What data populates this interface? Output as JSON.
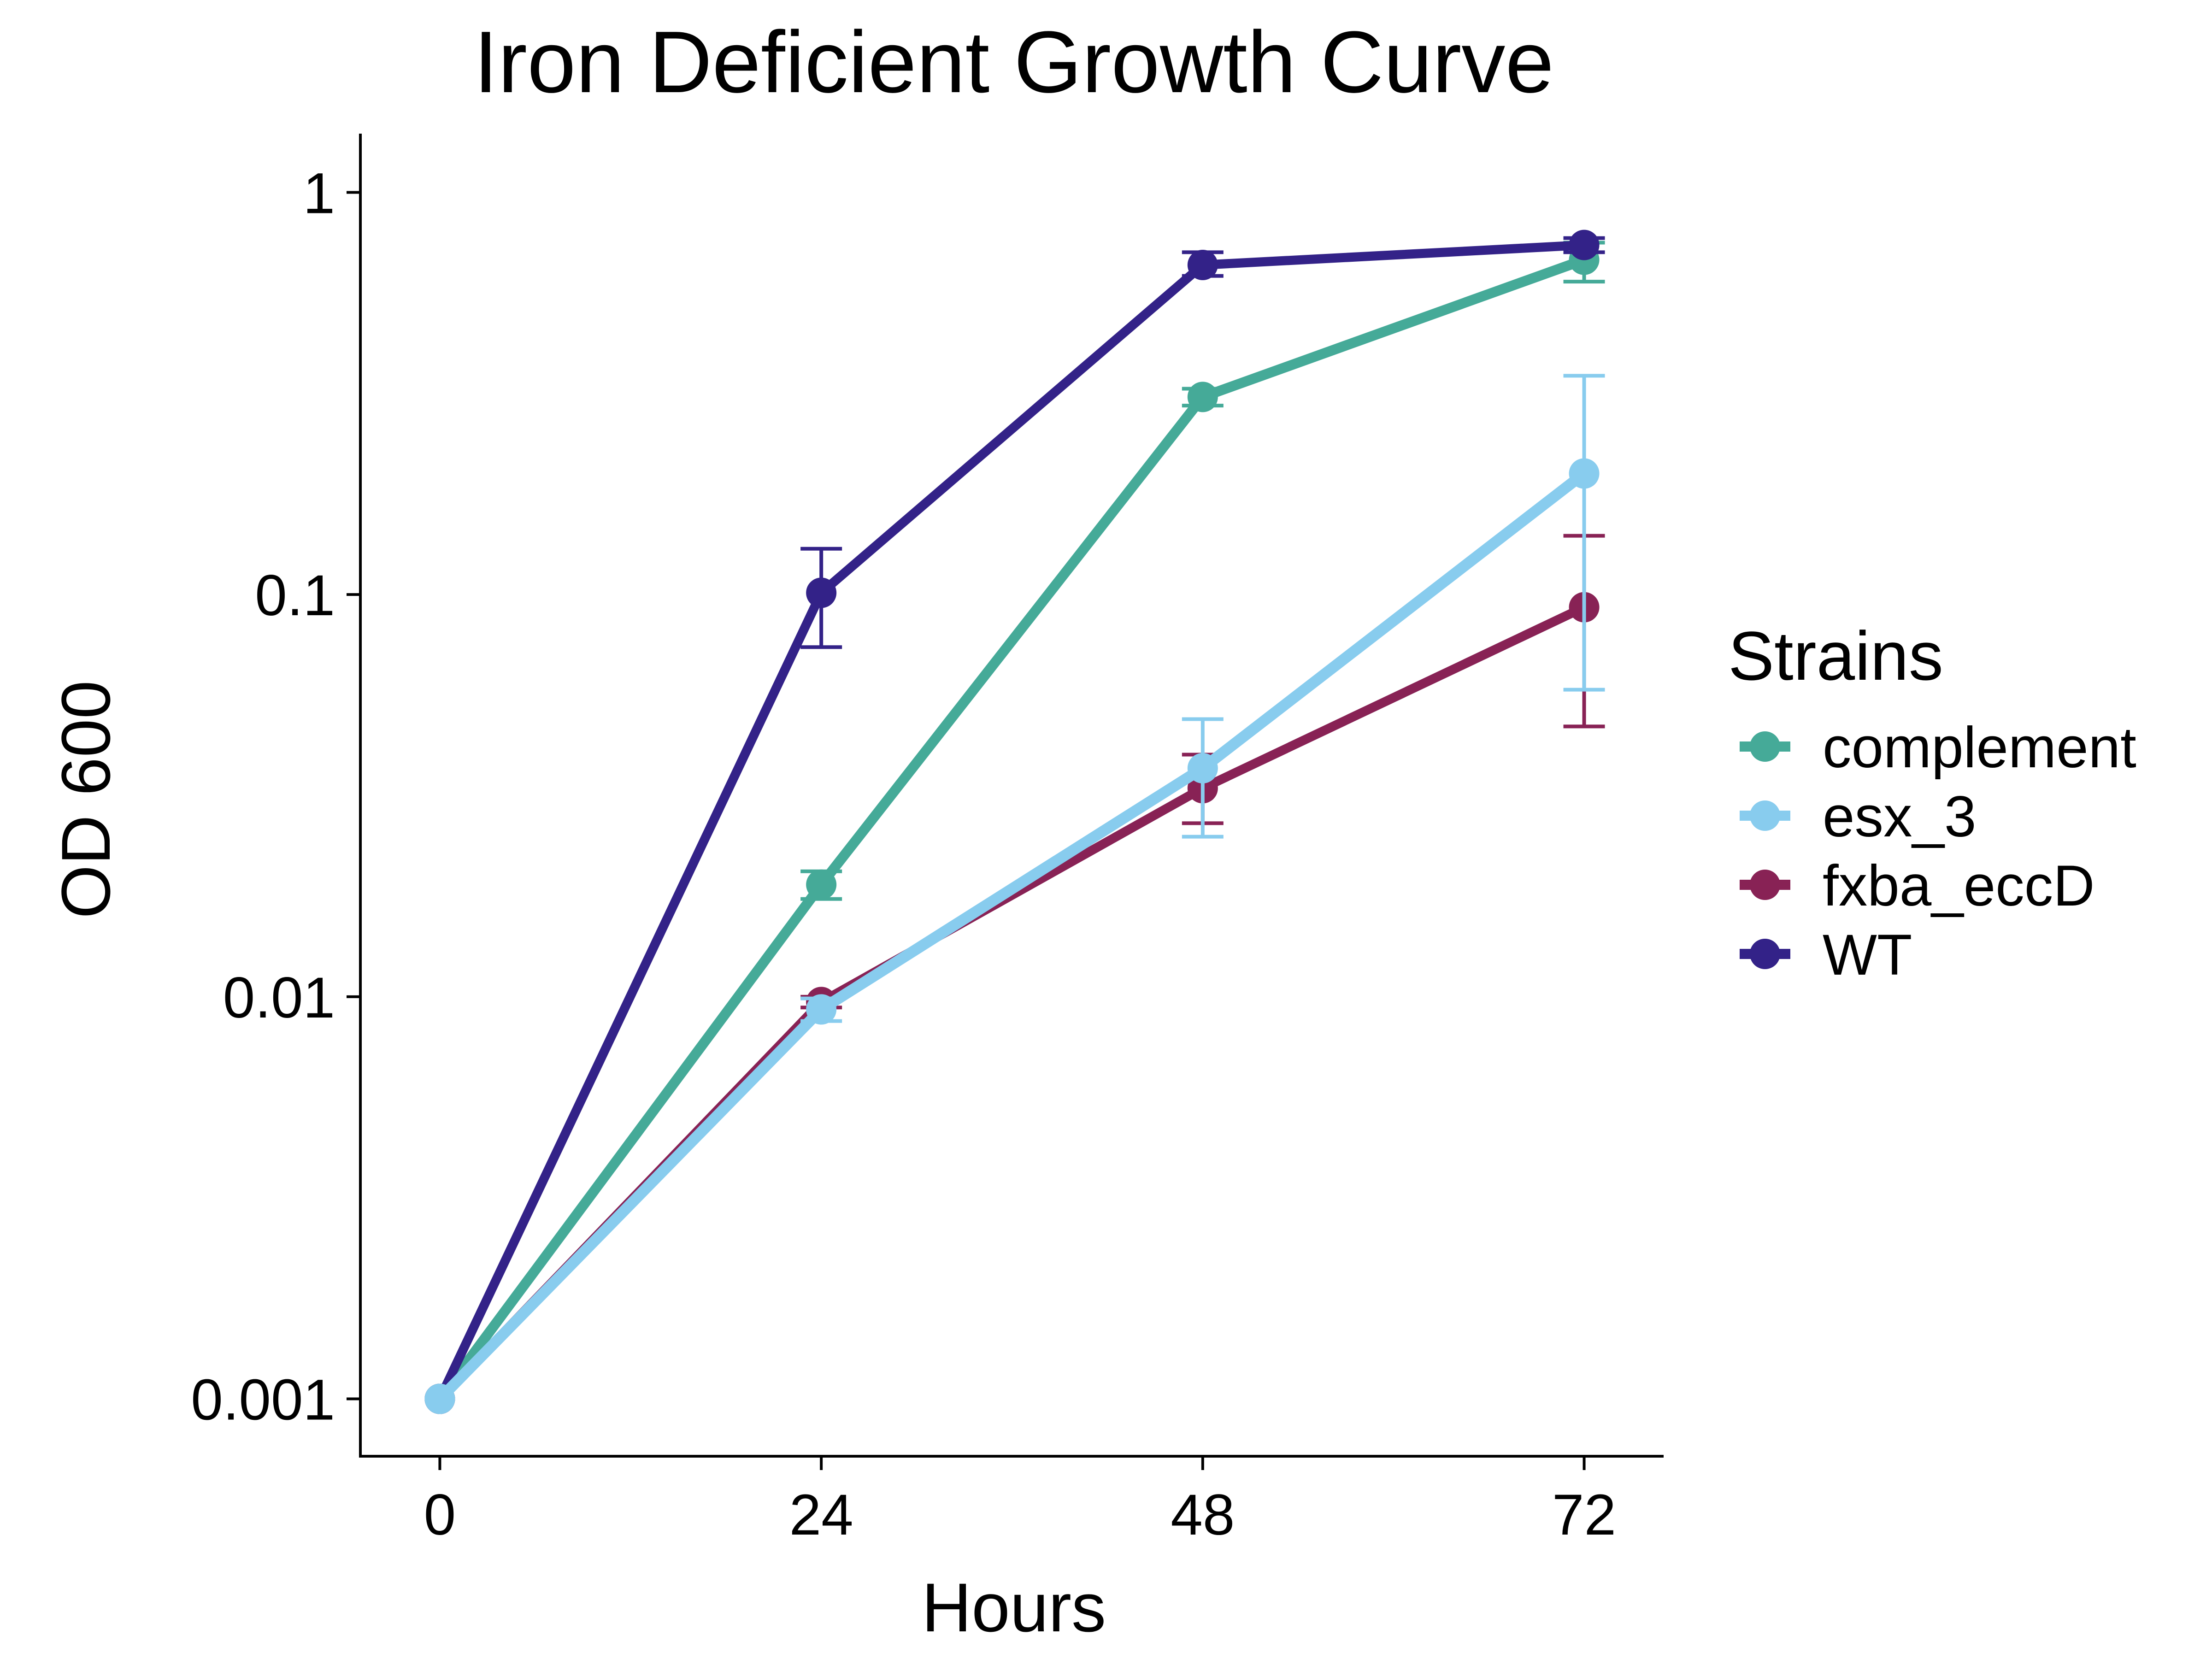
{
  "chart_data": {
    "type": "line",
    "title": "Iron Deficient Growth Curve",
    "xlabel": "Hours",
    "ylabel": "OD 600",
    "x_ticks": [
      0,
      24,
      48,
      72
    ],
    "x_tick_labels": [
      "0",
      "24",
      "48",
      "72"
    ],
    "y_scale": "log10",
    "y_ticks": [
      0.001,
      0.01,
      0.1,
      1
    ],
    "y_tick_labels": [
      "0.001",
      "0.01",
      "0.1",
      "1"
    ],
    "xlim": [
      -5,
      77
    ],
    "ylim": [
      0.00072,
      1.4
    ],
    "grid": false,
    "legend_title": "Strains",
    "legend_position": "right",
    "x": [
      0,
      24,
      48,
      72
    ],
    "series": [
      {
        "name": "complement",
        "color": "#45AA98",
        "values": [
          0.001,
          0.019,
          0.31,
          0.68
        ],
        "err_low": [
          0.001,
          0.0175,
          0.295,
          0.6
        ],
        "err_high": [
          0.001,
          0.0205,
          0.325,
          0.75
        ]
      },
      {
        "name": "esx_3",
        "color": "#88CCEE",
        "values": [
          0.001,
          0.0093,
          0.037,
          0.2
        ],
        "err_low": [
          0.001,
          0.0087,
          0.025,
          0.058
        ],
        "err_high": [
          0.001,
          0.0099,
          0.049,
          0.35
        ]
      },
      {
        "name": "fxba_eccD",
        "color": "#882255",
        "values": [
          0.001,
          0.0097,
          0.033,
          0.093
        ],
        "err_low": [
          0.001,
          0.0094,
          0.027,
          0.047
        ],
        "err_high": [
          0.001,
          0.01,
          0.04,
          0.14
        ]
      },
      {
        "name": "WT",
        "color": "#332288",
        "values": [
          0.001,
          0.101,
          0.66,
          0.74
        ],
        "err_low": [
          0.001,
          0.074,
          0.62,
          0.71
        ],
        "err_high": [
          0.001,
          0.13,
          0.71,
          0.77
        ]
      }
    ]
  }
}
